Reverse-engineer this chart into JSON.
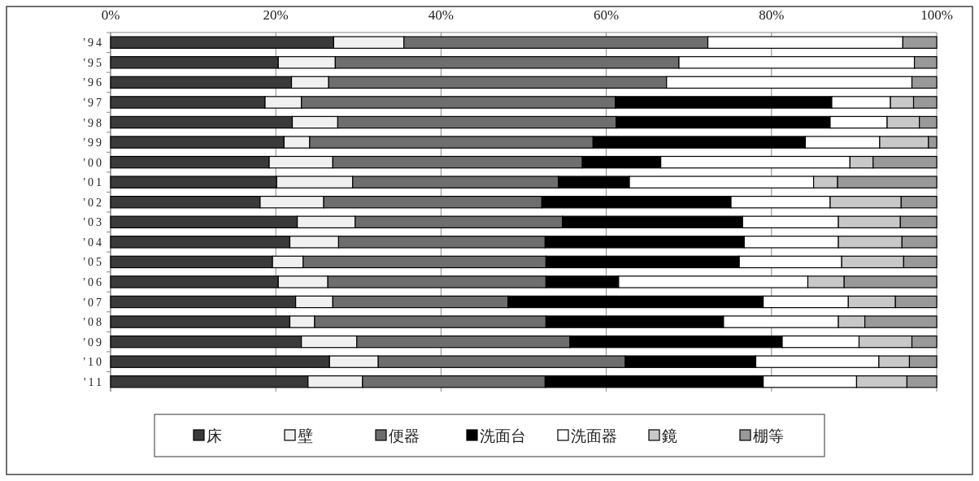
{
  "chart_data": {
    "type": "bar",
    "orientation": "horizontal",
    "stacked": true,
    "categories": [
      "'94",
      "'95",
      "'96",
      "'97",
      "'98",
      "'99",
      "'00",
      "'01",
      "'02",
      "'03",
      "'04",
      "'05",
      "'06",
      "'07",
      "'08",
      "'09",
      "'10",
      "'11"
    ],
    "series": [
      {
        "name": "床",
        "color": "#3a3a3a",
        "values": [
          27.0,
          20.3,
          21.9,
          18.7,
          22.0,
          21.0,
          19.2,
          20.1,
          18.1,
          22.6,
          21.7,
          19.6,
          20.3,
          22.4,
          21.7,
          23.1,
          26.5,
          23.9
        ]
      },
      {
        "name": "壁",
        "color": "#f0f0f0",
        "values": [
          8.5,
          6.9,
          4.5,
          4.4,
          5.5,
          3.1,
          7.7,
          9.2,
          7.7,
          7.0,
          5.9,
          3.7,
          6.0,
          4.5,
          3.0,
          6.7,
          5.9,
          6.6
        ]
      },
      {
        "name": "便器",
        "color": "#6e6e6e",
        "values": [
          36.8,
          41.6,
          40.9,
          38.0,
          33.7,
          34.3,
          30.2,
          24.9,
          26.4,
          25.1,
          25.0,
          29.4,
          26.4,
          21.2,
          28.0,
          25.8,
          29.9,
          22.1
        ]
      },
      {
        "name": "洗面台",
        "color": "#000000",
        "values": [
          0,
          0,
          0,
          26.2,
          25.9,
          25.7,
          9.5,
          8.6,
          22.9,
          21.8,
          24.1,
          23.4,
          8.8,
          30.9,
          21.5,
          25.7,
          15.8,
          26.4
        ]
      },
      {
        "name": "洗面器",
        "color": "#ffffff",
        "values": [
          23.6,
          28.5,
          29.7,
          7.1,
          6.9,
          9.0,
          22.9,
          22.3,
          12.0,
          11.6,
          11.4,
          12.4,
          22.9,
          10.3,
          13.9,
          9.3,
          14.9,
          11.3
        ]
      },
      {
        "name": "鏡",
        "color": "#c8c8c8",
        "values": [
          0,
          0,
          0,
          2.8,
          3.9,
          5.9,
          2.8,
          2.9,
          8.6,
          7.5,
          7.7,
          7.5,
          4.4,
          5.7,
          3.2,
          6.4,
          3.7,
          6.1
        ]
      },
      {
        "name": "棚等",
        "color": "#999999",
        "values": [
          4.1,
          2.7,
          3.0,
          2.8,
          2.1,
          1.0,
          7.7,
          12.0,
          4.3,
          4.4,
          4.2,
          4.0,
          11.2,
          5.0,
          8.7,
          3.0,
          3.3,
          3.6
        ]
      }
    ],
    "xlim": [
      0,
      100
    ],
    "xticks": [
      {
        "value": 0,
        "label": "0%"
      },
      {
        "value": 20,
        "label": "20%"
      },
      {
        "value": 40,
        "label": "40%"
      },
      {
        "value": 60,
        "label": "60%"
      },
      {
        "value": 80,
        "label": "80%"
      },
      {
        "value": 100,
        "label": "100%"
      }
    ],
    "grid": "x",
    "legend": "bottom"
  }
}
